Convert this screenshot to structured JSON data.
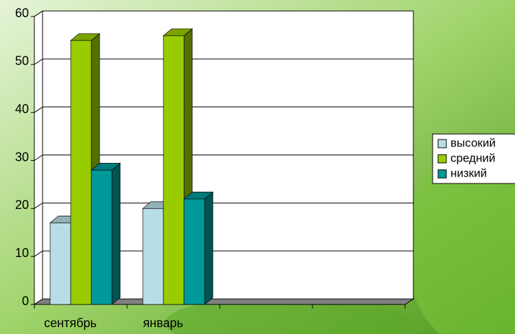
{
  "chart_data": {
    "type": "bar3d",
    "categories": [
      "сентябрь",
      "январь",
      null,
      null
    ],
    "series": [
      {
        "name": "высокий",
        "color": "#b8dde6",
        "values": [
          17,
          20,
          null,
          null
        ]
      },
      {
        "name": "средний",
        "color": "#99cc00",
        "values": [
          55,
          56,
          null,
          null
        ]
      },
      {
        "name": "низкий",
        "color": "#009999",
        "values": [
          28,
          22,
          null,
          null
        ]
      }
    ],
    "ylim": [
      0,
      60
    ],
    "yticks": [
      0,
      10,
      20,
      30,
      40,
      50,
      60
    ],
    "grid": true,
    "legend": "right"
  }
}
